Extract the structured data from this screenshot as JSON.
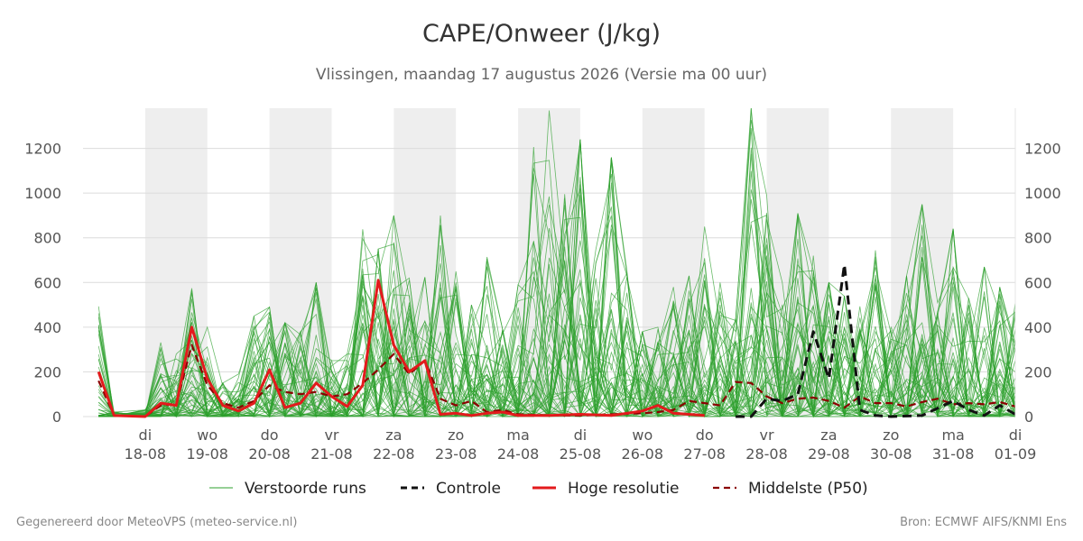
{
  "chart_data": {
    "type": "line",
    "title": "CAPE/Onweer (J/kg)",
    "subtitle": "Vlissingen, maandag 17 augustus 2026 (Versie ma 00 uur)",
    "xlabel": "",
    "ylabel": "",
    "ylim": [
      0,
      1380
    ],
    "xlim": [
      "2026-08-17 00:00",
      "2026-09-01 00:00"
    ],
    "yticks": [
      0,
      200,
      400,
      600,
      800,
      1000,
      1200
    ],
    "grid": true,
    "legend_position": "bottom",
    "weekend_shading": true,
    "x_tick_labels": [
      {
        "day": "di",
        "date": "18-08"
      },
      {
        "day": "wo",
        "date": "19-08"
      },
      {
        "day": "do",
        "date": "20-08"
      },
      {
        "day": "vr",
        "date": "21-08"
      },
      {
        "day": "za",
        "date": "22-08"
      },
      {
        "day": "zo",
        "date": "23-08"
      },
      {
        "day": "ma",
        "date": "24-08"
      },
      {
        "day": "di",
        "date": "25-08"
      },
      {
        "day": "wo",
        "date": "26-08"
      },
      {
        "day": "do",
        "date": "27-08"
      },
      {
        "day": "vr",
        "date": "28-08"
      },
      {
        "day": "za",
        "date": "29-08"
      },
      {
        "day": "zo",
        "date": "30-08"
      },
      {
        "day": "ma",
        "date": "31-08"
      },
      {
        "day": "di",
        "date": "01-09"
      }
    ],
    "legend": [
      {
        "label": "Verstoorde runs",
        "color": "#2ca02c",
        "style": "thin-solid"
      },
      {
        "label": "Controle",
        "color": "#111111",
        "style": "dashed"
      },
      {
        "label": "Hoge resolutie",
        "color": "#e31a1c",
        "style": "thick-solid"
      },
      {
        "label": "Middelste (P50)",
        "color": "#8b0000",
        "style": "dashed"
      }
    ],
    "series": [
      {
        "name": "Hoge resolutie",
        "color": "#e31a1c",
        "points": [
          [
            "2026-08-17 06:00",
            200
          ],
          [
            "2026-08-17 12:00",
            5
          ],
          [
            "2026-08-18 00:00",
            0
          ],
          [
            "2026-08-18 06:00",
            60
          ],
          [
            "2026-08-18 12:00",
            50
          ],
          [
            "2026-08-18 18:00",
            400
          ],
          [
            "2026-08-19 00:00",
            170
          ],
          [
            "2026-08-19 06:00",
            50
          ],
          [
            "2026-08-19 12:00",
            25
          ],
          [
            "2026-08-19 18:00",
            60
          ],
          [
            "2026-08-20 00:00",
            210
          ],
          [
            "2026-08-20 06:00",
            40
          ],
          [
            "2026-08-20 12:00",
            60
          ],
          [
            "2026-08-20 18:00",
            150
          ],
          [
            "2026-08-21 00:00",
            90
          ],
          [
            "2026-08-21 06:00",
            45
          ],
          [
            "2026-08-21 12:00",
            140
          ],
          [
            "2026-08-21 18:00",
            610
          ],
          [
            "2026-08-22 00:00",
            320
          ],
          [
            "2026-08-22 06:00",
            200
          ],
          [
            "2026-08-22 12:00",
            250
          ],
          [
            "2026-08-22 18:00",
            10
          ],
          [
            "2026-08-23 00:00",
            15
          ],
          [
            "2026-08-23 06:00",
            5
          ],
          [
            "2026-08-23 12:00",
            15
          ],
          [
            "2026-08-23 18:00",
            20
          ],
          [
            "2026-08-24 00:00",
            5
          ],
          [
            "2026-08-24 12:00",
            5
          ],
          [
            "2026-08-25 00:00",
            10
          ],
          [
            "2026-08-25 12:00",
            5
          ],
          [
            "2026-08-26 00:00",
            25
          ],
          [
            "2026-08-26 06:00",
            50
          ],
          [
            "2026-08-26 12:00",
            15
          ],
          [
            "2026-08-26 18:00",
            10
          ],
          [
            "2026-08-27 00:00",
            5
          ]
        ]
      },
      {
        "name": "Controle",
        "color": "#111111",
        "points": [
          [
            "2026-08-27 12:00",
            0
          ],
          [
            "2026-08-27 18:00",
            0
          ],
          [
            "2026-08-28 00:00",
            80
          ],
          [
            "2026-08-28 06:00",
            70
          ],
          [
            "2026-08-28 12:00",
            100
          ],
          [
            "2026-08-28 18:00",
            380
          ],
          [
            "2026-08-29 00:00",
            170
          ],
          [
            "2026-08-29 06:00",
            680
          ],
          [
            "2026-08-29 12:00",
            30
          ],
          [
            "2026-08-29 18:00",
            5
          ],
          [
            "2026-08-30 00:00",
            0
          ],
          [
            "2026-08-30 12:00",
            5
          ],
          [
            "2026-08-31 00:00",
            70
          ],
          [
            "2026-08-31 06:00",
            30
          ],
          [
            "2026-08-31 12:00",
            5
          ],
          [
            "2026-08-31 18:00",
            50
          ],
          [
            "2026-09-01 00:00",
            10
          ]
        ]
      },
      {
        "name": "Middelste (P50)",
        "color": "#8b0000",
        "points": [
          [
            "2026-08-17 06:00",
            160
          ],
          [
            "2026-08-17 12:00",
            5
          ],
          [
            "2026-08-18 00:00",
            0
          ],
          [
            "2026-08-18 06:00",
            50
          ],
          [
            "2026-08-18 12:00",
            55
          ],
          [
            "2026-08-18 18:00",
            320
          ],
          [
            "2026-08-19 00:00",
            140
          ],
          [
            "2026-08-19 06:00",
            60
          ],
          [
            "2026-08-19 12:00",
            40
          ],
          [
            "2026-08-19 18:00",
            70
          ],
          [
            "2026-08-20 00:00",
            140
          ],
          [
            "2026-08-20 06:00",
            110
          ],
          [
            "2026-08-20 12:00",
            100
          ],
          [
            "2026-08-20 18:00",
            110
          ],
          [
            "2026-08-21 00:00",
            90
          ],
          [
            "2026-08-21 06:00",
            100
          ],
          [
            "2026-08-21 12:00",
            150
          ],
          [
            "2026-08-21 18:00",
            210
          ],
          [
            "2026-08-22 00:00",
            280
          ],
          [
            "2026-08-22 06:00",
            190
          ],
          [
            "2026-08-22 12:00",
            250
          ],
          [
            "2026-08-22 18:00",
            80
          ],
          [
            "2026-08-23 00:00",
            50
          ],
          [
            "2026-08-23 06:00",
            70
          ],
          [
            "2026-08-23 12:00",
            20
          ],
          [
            "2026-08-23 18:00",
            30
          ],
          [
            "2026-08-24 00:00",
            10
          ],
          [
            "2026-08-24 12:00",
            5
          ],
          [
            "2026-08-25 00:00",
            5
          ],
          [
            "2026-08-25 12:00",
            10
          ],
          [
            "2026-08-26 00:00",
            15
          ],
          [
            "2026-08-26 06:00",
            20
          ],
          [
            "2026-08-26 12:00",
            30
          ],
          [
            "2026-08-26 18:00",
            70
          ],
          [
            "2026-08-27 00:00",
            60
          ],
          [
            "2026-08-27 06:00",
            50
          ],
          [
            "2026-08-27 12:00",
            155
          ],
          [
            "2026-08-27 18:00",
            150
          ],
          [
            "2026-08-28 00:00",
            90
          ],
          [
            "2026-08-28 06:00",
            60
          ],
          [
            "2026-08-28 12:00",
            80
          ],
          [
            "2026-08-28 18:00",
            85
          ],
          [
            "2026-08-29 00:00",
            70
          ],
          [
            "2026-08-29 06:00",
            40
          ],
          [
            "2026-08-29 12:00",
            90
          ],
          [
            "2026-08-29 18:00",
            60
          ],
          [
            "2026-08-30 00:00",
            60
          ],
          [
            "2026-08-30 06:00",
            45
          ],
          [
            "2026-08-30 12:00",
            65
          ],
          [
            "2026-08-30 18:00",
            80
          ],
          [
            "2026-08-31 00:00",
            55
          ],
          [
            "2026-08-31 06:00",
            60
          ],
          [
            "2026-08-31 12:00",
            55
          ],
          [
            "2026-08-31 18:00",
            65
          ],
          [
            "2026-09-01 00:00",
            45
          ]
        ]
      }
    ],
    "ensemble": {
      "name": "Verstoorde runs",
      "color": "#2ca02c",
      "member_count": 50,
      "envelope": [
        [
          "2026-08-17 06:00",
          500
        ],
        [
          "2026-08-17 12:00",
          20
        ],
        [
          "2026-08-18 00:00",
          30
        ],
        [
          "2026-08-18 06:00",
          340
        ],
        [
          "2026-08-18 12:00",
          280
        ],
        [
          "2026-08-18 18:00",
          640
        ],
        [
          "2026-08-19 00:00",
          400
        ],
        [
          "2026-08-19 06:00",
          150
        ],
        [
          "2026-08-19 12:00",
          190
        ],
        [
          "2026-08-19 18:00",
          450
        ],
        [
          "2026-08-20 00:00",
          490
        ],
        [
          "2026-08-20 06:00",
          420
        ],
        [
          "2026-08-20 12:00",
          380
        ],
        [
          "2026-08-20 18:00",
          600
        ],
        [
          "2026-08-21 00:00",
          250
        ],
        [
          "2026-08-21 06:00",
          280
        ],
        [
          "2026-08-21 12:00",
          880
        ],
        [
          "2026-08-21 18:00",
          750
        ],
        [
          "2026-08-22 00:00",
          900
        ],
        [
          "2026-08-22 06:00",
          620
        ],
        [
          "2026-08-22 12:00",
          650
        ],
        [
          "2026-08-22 18:00",
          900
        ],
        [
          "2026-08-23 00:00",
          650
        ],
        [
          "2026-08-23 06:00",
          500
        ],
        [
          "2026-08-23 12:00",
          770
        ],
        [
          "2026-08-23 18:00",
          390
        ],
        [
          "2026-08-24 00:00",
          590
        ],
        [
          "2026-08-24 06:00",
          1240
        ],
        [
          "2026-08-24 12:00",
          1370
        ],
        [
          "2026-08-24 18:00",
          1000
        ],
        [
          "2026-08-25 00:00",
          1240
        ],
        [
          "2026-08-25 06:00",
          760
        ],
        [
          "2026-08-25 12:00",
          1160
        ],
        [
          "2026-08-25 18:00",
          690
        ],
        [
          "2026-08-26 00:00",
          380
        ],
        [
          "2026-08-26 06:00",
          400
        ],
        [
          "2026-08-26 12:00",
          580
        ],
        [
          "2026-08-26 18:00",
          630
        ],
        [
          "2026-08-27 00:00",
          850
        ],
        [
          "2026-08-27 06:00",
          600
        ],
        [
          "2026-08-27 12:00",
          440
        ],
        [
          "2026-08-27 18:00",
          1380
        ],
        [
          "2026-08-28 00:00",
          990
        ],
        [
          "2026-08-28 06:00",
          600
        ],
        [
          "2026-08-28 12:00",
          910
        ],
        [
          "2026-08-28 18:00",
          720
        ],
        [
          "2026-08-29 00:00",
          600
        ],
        [
          "2026-08-29 06:00",
          540
        ],
        [
          "2026-08-29 12:00",
          500
        ],
        [
          "2026-08-29 18:00",
          780
        ],
        [
          "2026-08-30 00:00",
          400
        ],
        [
          "2026-08-30 06:00",
          630
        ],
        [
          "2026-08-30 12:00",
          950
        ],
        [
          "2026-08-30 18:00",
          520
        ],
        [
          "2026-08-31 00:00",
          840
        ],
        [
          "2026-08-31 06:00",
          550
        ],
        [
          "2026-08-31 12:00",
          670
        ],
        [
          "2026-08-31 18:00",
          580
        ],
        [
          "2026-09-01 00:00",
          510
        ]
      ]
    }
  },
  "footer": {
    "left": "Gegenereerd door MeteoVPS (meteo-service.nl)",
    "right": "Bron: ECMWF AIFS/KNMI Ens"
  }
}
